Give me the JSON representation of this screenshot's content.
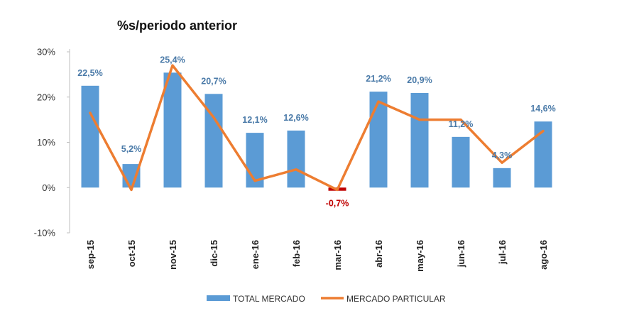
{
  "chart_data": {
    "type": "bar",
    "title": "%s/periodo anterior",
    "categories": [
      "sep-15",
      "oct-15",
      "nov-15",
      "dic-15",
      "ene-16",
      "feb-16",
      "mar-16",
      "abr-16",
      "may-16",
      "jun-16",
      "jul-16",
      "ago-16"
    ],
    "ylim": [
      -10,
      30
    ],
    "yticks": [
      30,
      20,
      10,
      0,
      -10
    ],
    "ytick_labels": [
      "30%",
      "20%",
      "10%",
      "0%",
      "-10%"
    ],
    "grid": false,
    "legend_position": "bottom",
    "series": [
      {
        "name": "TOTAL MERCADO",
        "type": "bar",
        "color": "#5b9bd5",
        "values": [
          22.5,
          5.2,
          25.4,
          20.7,
          12.1,
          12.6,
          -0.7,
          21.2,
          20.9,
          11.2,
          4.3,
          14.6
        ],
        "labels": [
          "22,5%",
          "5,2%",
          "25,4%",
          "20,7%",
          "12,1%",
          "12,6%",
          "-0,7%",
          "21,2%",
          "20,9%",
          "11,2%",
          "4,3%",
          "14,6%"
        ]
      },
      {
        "name": "MERCADO PARTICULAR",
        "type": "line",
        "color": "#ed7d31",
        "values": [
          16.5,
          -0.5,
          27.0,
          15.5,
          1.5,
          4.0,
          -0.5,
          19.0,
          15.0,
          15.0,
          5.5,
          12.5
        ]
      }
    ],
    "label_color": "#4a7aa8",
    "negative_label_color": "#c00000",
    "negative_bar_color": "#c00000"
  }
}
